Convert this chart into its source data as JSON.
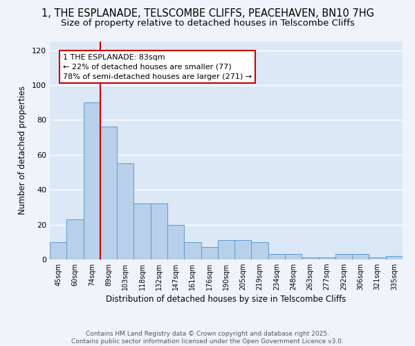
{
  "title": "1, THE ESPLANADE, TELSCOMBE CLIFFS, PEACEHAVEN, BN10 7HG",
  "subtitle": "Size of property relative to detached houses in Telscombe Cliffs",
  "xlabel": "Distribution of detached houses by size in Telscombe Cliffs",
  "ylabel": "Number of detached properties",
  "categories": [
    "45sqm",
    "60sqm",
    "74sqm",
    "89sqm",
    "103sqm",
    "118sqm",
    "132sqm",
    "147sqm",
    "161sqm",
    "176sqm",
    "190sqm",
    "205sqm",
    "219sqm",
    "234sqm",
    "248sqm",
    "263sqm",
    "277sqm",
    "292sqm",
    "306sqm",
    "321sqm",
    "335sqm"
  ],
  "values": [
    10,
    23,
    90,
    76,
    55,
    32,
    32,
    20,
    10,
    7,
    11,
    11,
    10,
    3,
    3,
    1,
    1,
    3,
    3,
    1,
    2
  ],
  "bar_color": "#b8d0ea",
  "bar_edge_color": "#5b9bd5",
  "vline_x": 2.5,
  "vline_color": "#cc0000",
  "annotation_text": "1 THE ESPLANADE: 83sqm\n← 22% of detached houses are smaller (77)\n78% of semi-detached houses are larger (271) →",
  "annotation_box_color": "#ffffff",
  "annotation_box_edge": "#cc0000",
  "ylim": [
    0,
    125
  ],
  "yticks": [
    0,
    20,
    40,
    60,
    80,
    100,
    120
  ],
  "background_color": "#dce8f5",
  "fig_background": "#f0f4fa",
  "footer": "Contains HM Land Registry data © Crown copyright and database right 2025.\nContains public sector information licensed under the Open Government Licence v3.0.",
  "title_fontsize": 10.5,
  "subtitle_fontsize": 9.5,
  "annot_fontsize": 8,
  "footer_fontsize": 6.5
}
